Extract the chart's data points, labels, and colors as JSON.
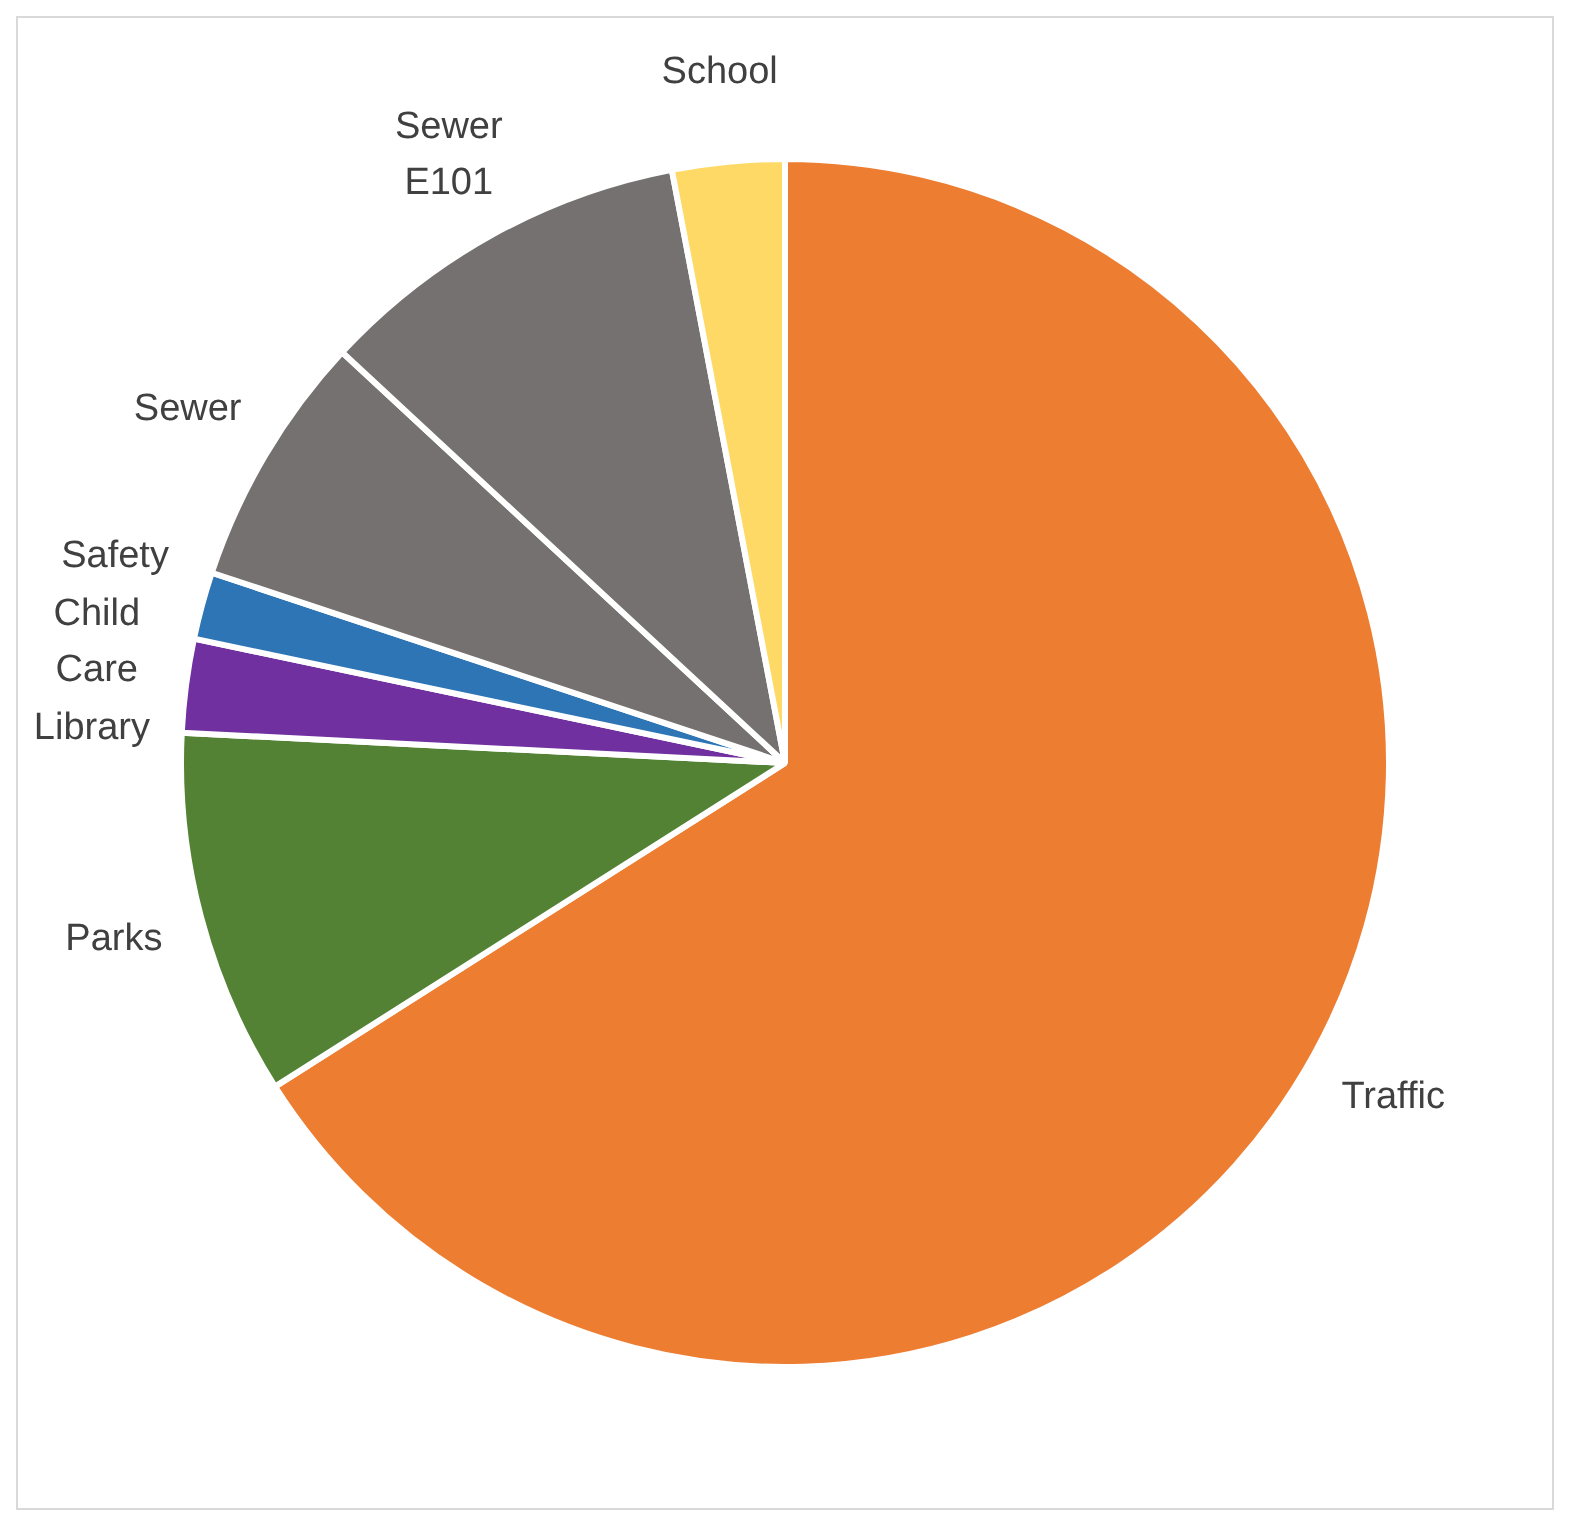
{
  "chart_data": {
    "type": "pie",
    "categories": [
      "Traffic",
      "Parks",
      "Library",
      "Child Care",
      "Safety",
      "Sewer",
      "Sewer E101",
      "School"
    ],
    "values": [
      66.0,
      9.8,
      null,
      2.5,
      1.8,
      6.8,
      10.1,
      3.0
    ],
    "colors": [
      "#ed7d31",
      "#548235",
      "#a5a5a5",
      "#7030a0",
      "#2e75b6",
      "#767171",
      "#767171",
      "#ffd966"
    ],
    "legend": false
  }
}
